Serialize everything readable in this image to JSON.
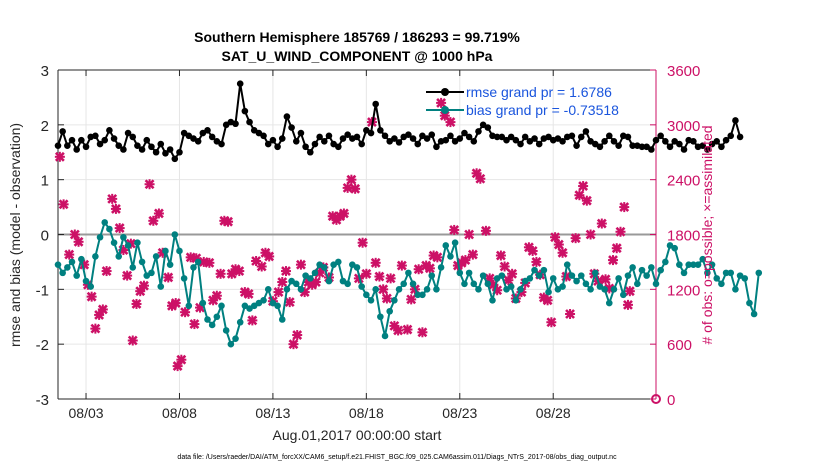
{
  "chart_data": {
    "type": "line",
    "title": [
      "Southern Hemisphere 185769 / 186293 = 99.719%",
      "SAT_U_WIND_COMPONENT @ 1000 hPa"
    ],
    "xlabel": "Aug.01,2017 00:00:00 start",
    "ylabel_left": "rmse and bias (model - observation)",
    "ylabel_right": "# of obs: o=possible; ×=assimilated",
    "footer": "data file: /Users/raeder/DAI/ATM_forcXX/CAM6_setup/f.e21.FHIST_BGC.f09_025.CAM6assim.011/Diags_NTrS_2017-08/obs_diag_output.nc",
    "xlim": [
      1.5,
      33.5
    ],
    "ylim_left": [
      -3,
      3
    ],
    "ylim_right": [
      0,
      3600
    ],
    "x_ticks": [
      {
        "x": 3,
        "label": "08/03"
      },
      {
        "x": 8,
        "label": "08/08"
      },
      {
        "x": 13,
        "label": "08/13"
      },
      {
        "x": 18,
        "label": "08/18"
      },
      {
        "x": 23,
        "label": "08/23"
      },
      {
        "x": 28,
        "label": "08/28"
      }
    ],
    "y_ticks_left": [
      "3",
      "2",
      "1",
      "0",
      "-1",
      "-2",
      "-3"
    ],
    "y_ticks_right": [
      "3600",
      "3000",
      "2400",
      "1800",
      "1200",
      "600",
      "0"
    ],
    "x_start": 1.5,
    "x_step": 0.25,
    "legend": [
      "rmse grand pr = 1.6786",
      "bias grand pr = -0.73518"
    ],
    "colors": {
      "rmse": "#000000",
      "bias": "#008080",
      "obs": "#cc1166",
      "zero_line": "#999999",
      "right_axis": "#cc1166"
    },
    "series": [
      {
        "name": "rmse",
        "axis": "left",
        "values": [
          1.62,
          1.88,
          1.62,
          1.72,
          1.55,
          1.72,
          1.6,
          1.78,
          1.8,
          1.65,
          1.72,
          1.9,
          1.75,
          1.62,
          1.55,
          1.85,
          1.78,
          1.62,
          1.55,
          1.72,
          1.6,
          1.5,
          1.65,
          1.48,
          1.55,
          1.38,
          1.5,
          1.85,
          1.8,
          1.75,
          1.7,
          1.85,
          1.9,
          1.78,
          1.7,
          1.65,
          2.0,
          2.05,
          2.02,
          2.75,
          2.25,
          2.05,
          1.9,
          1.85,
          1.8,
          1.65,
          1.72,
          1.6,
          1.75,
          2.15,
          1.95,
          1.7,
          1.85,
          1.6,
          1.5,
          1.65,
          1.78,
          1.7,
          1.8,
          1.65,
          1.6,
          1.75,
          1.82,
          1.75,
          1.78,
          1.65,
          1.9,
          1.85,
          2.38,
          1.9,
          1.8,
          1.7,
          1.75,
          1.68,
          1.78,
          1.82,
          1.75,
          1.65,
          1.8,
          1.75,
          1.82,
          1.6,
          1.7,
          1.72,
          1.8,
          1.7,
          1.75,
          1.85,
          1.78,
          1.7,
          1.88,
          2.0,
          1.95,
          1.8,
          1.78,
          1.78,
          1.72,
          1.78,
          1.72,
          1.65,
          1.78,
          1.7,
          1.75,
          1.65,
          1.75,
          1.78,
          1.72,
          1.75,
          1.7,
          1.78,
          1.8,
          1.62,
          1.78,
          1.88,
          1.7,
          1.65,
          1.6,
          1.7,
          1.8,
          1.7,
          1.62,
          1.8,
          1.78,
          1.62,
          1.62,
          1.6,
          1.6,
          1.55,
          1.72,
          1.8,
          1.7,
          1.6,
          1.7,
          1.65,
          1.55,
          1.72,
          1.7,
          1.6,
          1.62,
          1.55,
          1.65,
          1.7,
          1.6,
          1.72,
          1.8,
          2.08,
          1.78
        ]
      },
      {
        "name": "bias",
        "axis": "left",
        "values": [
          -0.55,
          -0.7,
          -0.6,
          -0.5,
          -0.75,
          -0.45,
          -0.85,
          -0.95,
          -0.4,
          -0.05,
          0.22,
          0.1,
          -0.15,
          -0.4,
          -0.05,
          -0.2,
          -0.6,
          -0.15,
          -0.5,
          -0.75,
          -0.7,
          -0.4,
          -0.95,
          -0.3,
          -0.55,
          0.0,
          -0.3,
          -0.8,
          -1.3,
          -0.6,
          -0.5,
          -1.25,
          -1.55,
          -1.65,
          -1.5,
          -1.3,
          -1.75,
          -2.0,
          -1.9,
          -1.6,
          -1.3,
          -1.35,
          -1.3,
          -1.25,
          -1.2,
          -1.0,
          -1.25,
          -1.3,
          -1.55,
          -1.0,
          -0.85,
          -0.9,
          -1.0,
          -0.75,
          -0.8,
          -0.7,
          -0.55,
          -0.6,
          -0.85,
          -0.55,
          -0.5,
          -0.85,
          -0.9,
          -0.55,
          -0.6,
          -0.95,
          -1.1,
          -1.2,
          -1.0,
          -1.5,
          -1.85,
          -1.4,
          -1.2,
          -1.0,
          -0.9,
          -0.7,
          -0.9,
          -1.1,
          -1.1,
          -1.0,
          -0.75,
          -1.0,
          -0.6,
          -0.2,
          -0.4,
          -0.15,
          -0.7,
          -0.9,
          -0.7,
          -0.9,
          -1.0,
          -0.75,
          -0.9,
          -1.2,
          -0.8,
          -0.75,
          -1.0,
          -0.95,
          -1.2,
          -1.0,
          -0.85,
          -0.8,
          -0.65,
          -0.75,
          -0.65,
          -1.05,
          -0.8,
          -1.0,
          -0.95,
          -0.55,
          -0.75,
          -0.85,
          -0.75,
          -0.9,
          -1.0,
          -0.7,
          -0.95,
          -1.0,
          -1.25,
          -1.0,
          -0.8,
          -1.1,
          -0.75,
          -0.6,
          -0.9,
          -0.65,
          -0.75,
          -0.6,
          -0.9,
          -0.65,
          -0.5,
          -0.2,
          -0.25,
          -0.55,
          -0.7,
          -0.55,
          -0.55,
          -0.55,
          -0.45,
          -0.7,
          -0.55,
          -0.8,
          -0.9,
          -0.7,
          -0.7,
          -1.0,
          -0.75,
          -0.8,
          -1.25,
          -1.45,
          -0.7
        ]
      },
      {
        "name": "obs_assimilated",
        "axis": "right",
        "marker": "×",
        "points": [
          [
            1.6,
            2650
          ],
          [
            1.8,
            2130
          ],
          [
            2.1,
            1580
          ],
          [
            2.4,
            1800
          ],
          [
            2.6,
            1720
          ],
          [
            2.9,
            1470
          ],
          [
            3.1,
            1250
          ],
          [
            3.3,
            1120
          ],
          [
            3.5,
            770
          ],
          [
            3.7,
            920
          ],
          [
            3.9,
            980
          ],
          [
            4.1,
            1400
          ],
          [
            4.4,
            2190
          ],
          [
            4.6,
            2080
          ],
          [
            4.8,
            1870
          ],
          [
            5.0,
            1630
          ],
          [
            5.2,
            1350
          ],
          [
            5.4,
            1700
          ],
          [
            5.5,
            640
          ],
          [
            5.7,
            1040
          ],
          [
            5.9,
            1180
          ],
          [
            6.1,
            1240
          ],
          [
            6.4,
            2350
          ],
          [
            6.6,
            1950
          ],
          [
            6.9,
            2030
          ],
          [
            7.1,
            1600
          ],
          [
            7.4,
            1330
          ],
          [
            7.6,
            1020
          ],
          [
            7.8,
            1050
          ],
          [
            7.9,
            360
          ],
          [
            8.1,
            430
          ],
          [
            8.3,
            950
          ],
          [
            8.6,
            1550
          ],
          [
            8.8,
            820
          ],
          [
            8.9,
            1540
          ],
          [
            9.1,
            1000
          ],
          [
            9.3,
            1500
          ],
          [
            9.6,
            1490
          ],
          [
            9.8,
            1080
          ],
          [
            10.0,
            1130
          ],
          [
            10.2,
            1370
          ],
          [
            10.4,
            1950
          ],
          [
            10.6,
            1940
          ],
          [
            10.8,
            1370
          ],
          [
            11.0,
            1420
          ],
          [
            11.2,
            1400
          ],
          [
            11.5,
            1170
          ],
          [
            11.7,
            1150
          ],
          [
            11.9,
            860
          ],
          [
            12.1,
            1510
          ],
          [
            12.4,
            1450
          ],
          [
            12.6,
            1600
          ],
          [
            12.8,
            1560
          ],
          [
            13.0,
            1070
          ],
          [
            13.3,
            1170
          ],
          [
            13.5,
            1280
          ],
          [
            13.7,
            1400
          ],
          [
            13.9,
            1060
          ],
          [
            14.1,
            600
          ],
          [
            14.3,
            700
          ],
          [
            14.5,
            1470
          ],
          [
            14.7,
            1170
          ],
          [
            14.9,
            1280
          ],
          [
            15.1,
            1250
          ],
          [
            15.3,
            1280
          ],
          [
            15.5,
            1380
          ],
          [
            15.7,
            1440
          ],
          [
            16.0,
            1330
          ],
          [
            16.2,
            2000
          ],
          [
            16.4,
            1960
          ],
          [
            16.6,
            2000
          ],
          [
            16.8,
            2030
          ],
          [
            17.0,
            2310
          ],
          [
            17.2,
            2400
          ],
          [
            17.4,
            2300
          ],
          [
            17.6,
            1320
          ],
          [
            17.8,
            1710
          ],
          [
            18.0,
            1370
          ],
          [
            18.3,
            3030
          ],
          [
            18.5,
            1490
          ],
          [
            18.7,
            1340
          ],
          [
            18.9,
            1200
          ],
          [
            19.1,
            1100
          ],
          [
            19.3,
            1320
          ],
          [
            19.5,
            800
          ],
          [
            19.7,
            750
          ],
          [
            19.9,
            1460
          ],
          [
            20.2,
            760
          ],
          [
            20.4,
            1090
          ],
          [
            20.6,
            1200
          ],
          [
            20.8,
            1420
          ],
          [
            21.0,
            730
          ],
          [
            21.2,
            1460
          ],
          [
            21.4,
            1430
          ],
          [
            21.6,
            1570
          ],
          [
            21.8,
            1550
          ],
          [
            22.0,
            3240
          ],
          [
            22.2,
            3100
          ],
          [
            22.5,
            3030
          ],
          [
            22.7,
            1850
          ],
          [
            22.9,
            1460
          ],
          [
            23.1,
            1490
          ],
          [
            23.3,
            1520
          ],
          [
            23.5,
            1800
          ],
          [
            23.7,
            1580
          ],
          [
            23.9,
            2470
          ],
          [
            24.1,
            2410
          ],
          [
            24.4,
            1840
          ],
          [
            24.6,
            1320
          ],
          [
            24.8,
            1250
          ],
          [
            25.0,
            1190
          ],
          [
            25.2,
            1570
          ],
          [
            25.4,
            1450
          ],
          [
            25.6,
            1300
          ],
          [
            25.8,
            1370
          ],
          [
            26.0,
            1100
          ],
          [
            26.3,
            1170
          ],
          [
            26.5,
            1270
          ],
          [
            26.7,
            1660
          ],
          [
            26.9,
            1620
          ],
          [
            27.1,
            1500
          ],
          [
            27.3,
            1360
          ],
          [
            27.5,
            1110
          ],
          [
            27.7,
            1080
          ],
          [
            27.9,
            840
          ],
          [
            28.1,
            1770
          ],
          [
            28.3,
            1690
          ],
          [
            28.5,
            1600
          ],
          [
            28.7,
            1340
          ],
          [
            28.9,
            930
          ],
          [
            29.2,
            1760
          ],
          [
            29.4,
            2230
          ],
          [
            29.6,
            2330
          ],
          [
            29.8,
            2170
          ],
          [
            30.0,
            1800
          ],
          [
            30.2,
            1370
          ],
          [
            30.4,
            1290
          ],
          [
            30.6,
            1920
          ],
          [
            30.8,
            1310
          ],
          [
            31.0,
            1210
          ],
          [
            31.2,
            1520
          ],
          [
            31.4,
            1650
          ],
          [
            31.6,
            1830
          ],
          [
            31.8,
            2100
          ],
          [
            32.0,
            1030
          ],
          [
            32.1,
            1180
          ]
        ]
      },
      {
        "name": "obs_possible",
        "axis": "right",
        "marker": "o",
        "points": [
          [
            33.5,
            0
          ]
        ]
      }
    ]
  }
}
